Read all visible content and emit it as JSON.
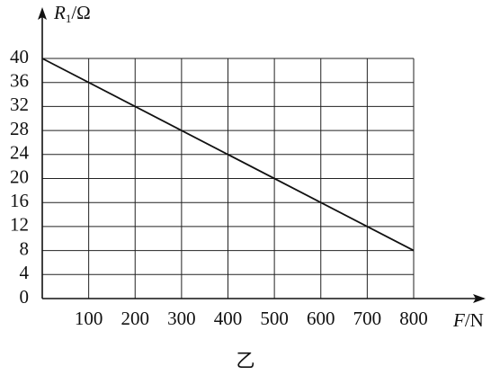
{
  "chart_data": {
    "type": "line",
    "y_label": {
      "symbol": "R",
      "subscript": "1",
      "unit": "/Ω"
    },
    "x_label": {
      "symbol": "F",
      "unit": "/N"
    },
    "caption": "乙",
    "x": [
      0,
      800
    ],
    "series": [
      {
        "values": [
          40,
          8
        ],
        "color": "#111111"
      }
    ],
    "xlim": [
      0,
      800
    ],
    "xticks": [
      100,
      200,
      300,
      400,
      500,
      600,
      700,
      800
    ],
    "ylim": [
      0,
      40
    ],
    "yticks": [
      0,
      4,
      8,
      12,
      16,
      20,
      24,
      28,
      32,
      36,
      40
    ],
    "grid": true
  }
}
